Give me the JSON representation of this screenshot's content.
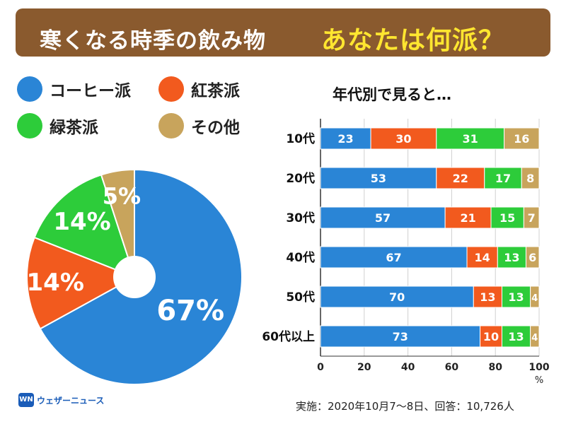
{
  "header": {
    "title": "寒くなる時季の飲み物",
    "subtitle": "あなたは何派？"
  },
  "legend": [
    {
      "label": "コーヒー派",
      "color": "#2a85d6"
    },
    {
      "label": "紅茶派",
      "color": "#f25a1e"
    },
    {
      "label": "緑茶派",
      "color": "#2dcc3a"
    },
    {
      "label": "その他",
      "color": "#c8a45c"
    }
  ],
  "bar_title": "年代別で見ると…",
  "logo_text": "ウェザーニュース",
  "footnote": "実施：2020年10月7〜8日、回答：10,726人",
  "chart_data": [
    {
      "type": "pie",
      "categories": [
        "コーヒー派",
        "紅茶派",
        "緑茶派",
        "その他"
      ],
      "values": [
        67,
        14,
        14,
        5
      ],
      "value_labels": [
        "67%",
        "14%",
        "14%",
        "5%"
      ],
      "colors": [
        "#2a85d6",
        "#f25a1e",
        "#2dcc3a",
        "#c8a45c"
      ],
      "donut_hole": true
    },
    {
      "type": "bar",
      "orientation": "horizontal",
      "stacked": true,
      "title": "年代別で見ると…",
      "categories": [
        "10代",
        "20代",
        "30代",
        "40代",
        "50代",
        "60代以上"
      ],
      "series": [
        {
          "name": "コーヒー派",
          "values": [
            23,
            53,
            57,
            67,
            70,
            73
          ],
          "color": "#2a85d6"
        },
        {
          "name": "紅茶派",
          "values": [
            30,
            22,
            21,
            14,
            13,
            10
          ],
          "color": "#f25a1e"
        },
        {
          "name": "緑茶派",
          "values": [
            31,
            17,
            15,
            13,
            13,
            13
          ],
          "color": "#2dcc3a"
        },
        {
          "name": "その他",
          "values": [
            16,
            8,
            7,
            6,
            4,
            4
          ],
          "color": "#c8a45c"
        }
      ],
      "xlim": [
        0,
        100
      ],
      "xticks": [
        "0",
        "20",
        "40",
        "60",
        "80",
        "100"
      ],
      "xunit": "%",
      "grid": true
    }
  ]
}
